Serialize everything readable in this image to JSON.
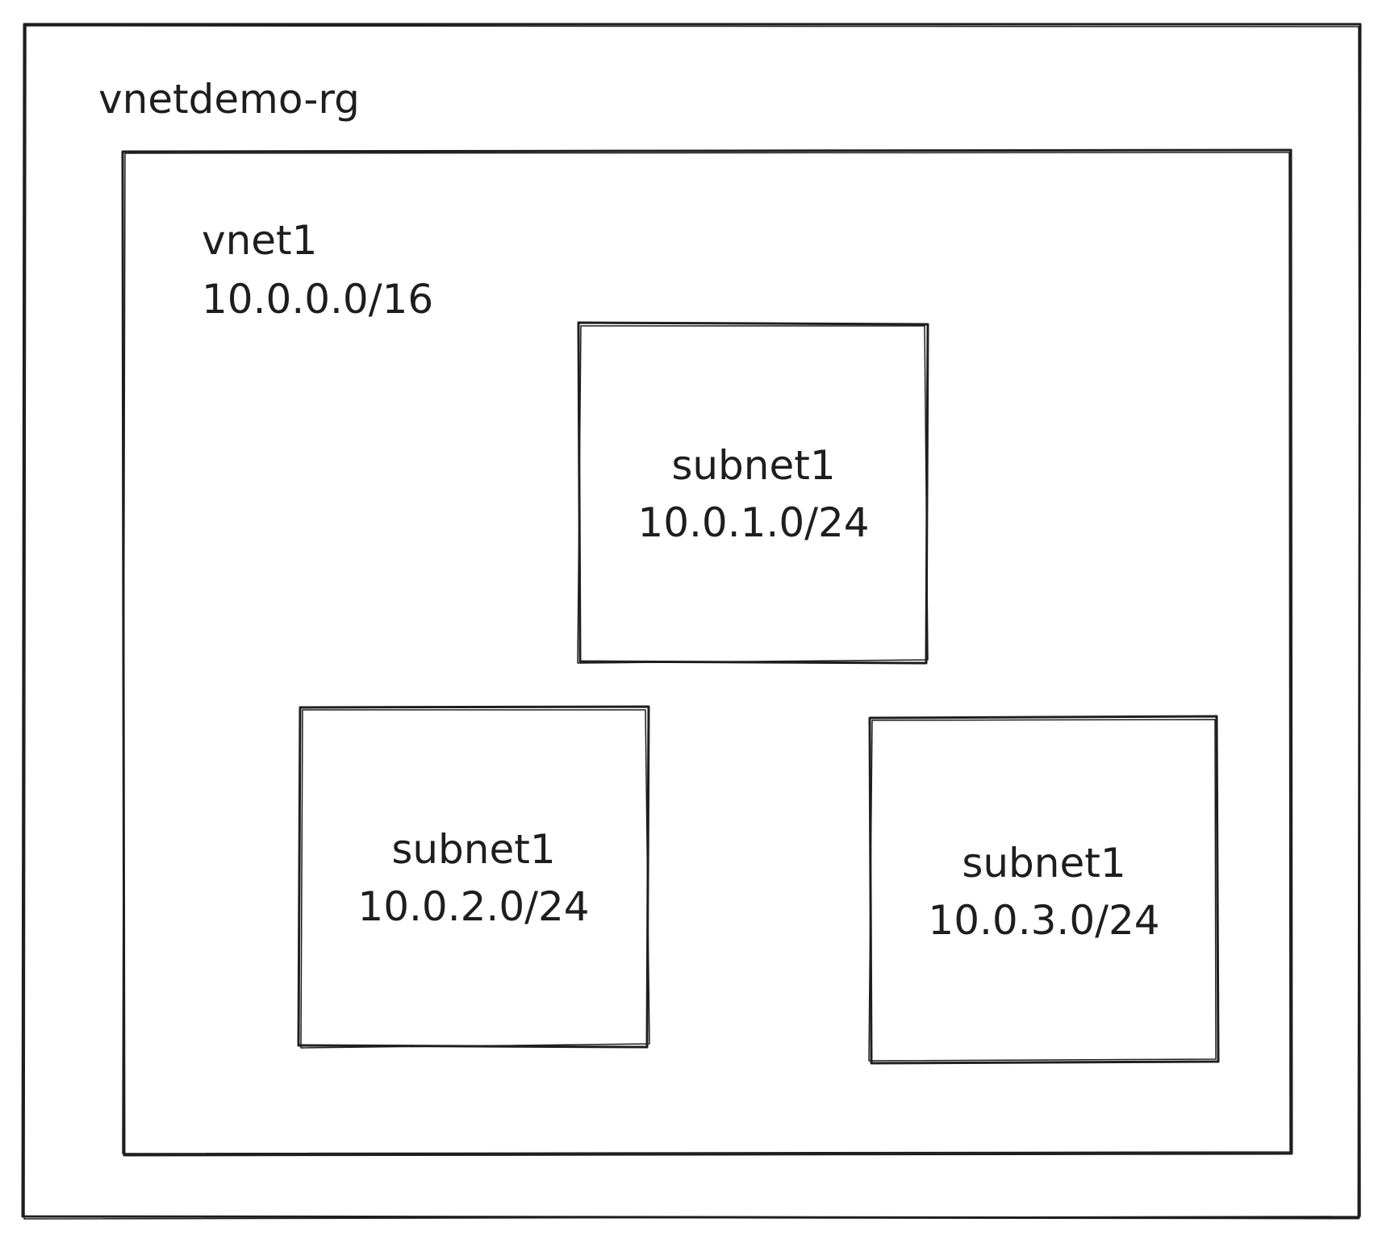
{
  "resource_group": {
    "name": "vnetdemo-rg"
  },
  "vnet": {
    "name": "vnet1",
    "cidr": "10.0.0.0/16"
  },
  "subnets": [
    {
      "name": "subnet1",
      "cidr": "10.0.1.0/24"
    },
    {
      "name": "subnet1",
      "cidr": "10.0.2.0/24"
    },
    {
      "name": "subnet1",
      "cidr": "10.0.3.0/24"
    }
  ],
  "colors": {
    "stroke": "#1e1e1e",
    "background": "#ffffff"
  }
}
